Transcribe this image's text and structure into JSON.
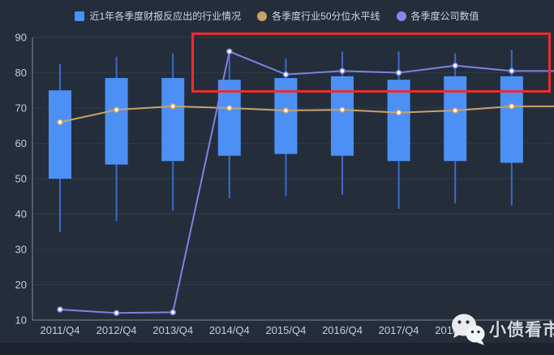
{
  "legend": {
    "items": [
      {
        "label": "近1年各季度财报反应出的行业情况",
        "marker": "square",
        "color": "#4c90f5"
      },
      {
        "label": "各季度行业50分位水平线",
        "marker": "circle",
        "color": "#c9a26b"
      },
      {
        "label": "各季度公司数值",
        "marker": "circle",
        "color": "#8588e8"
      }
    ]
  },
  "watermark": {
    "label": "小债看市",
    "icon": "wechat-icon"
  },
  "annotation": {
    "shape": "rectangle",
    "color": "#ea2c2c"
  },
  "chart_data": {
    "type": "candlestick+line",
    "title": "",
    "categories": [
      "2011/Q4",
      "2012/Q4",
      "2013/Q4",
      "2014/Q4",
      "2015/Q4",
      "2016/Q4",
      "2017/Q4",
      "2018/Q4",
      ""
    ],
    "ylim": [
      10,
      90
    ],
    "ytick_step": 10,
    "grid": true,
    "legend_position": "top",
    "series": [
      {
        "name": "近1年各季度财报反应出的行业情况",
        "type": "candlestick",
        "color": "#4c90f5",
        "whisker_color": "#3a6cc9",
        "boxes_low_q1_q3_high": [
          [
            35,
            50,
            75,
            82.5
          ],
          [
            38,
            54,
            78.5,
            84.5
          ],
          [
            41,
            55,
            78.5,
            85.5
          ],
          [
            44.5,
            56.5,
            78,
            86
          ],
          [
            45,
            57,
            78.5,
            84
          ],
          [
            45.5,
            56.5,
            79,
            86
          ],
          [
            41.5,
            55,
            78,
            86
          ],
          [
            43,
            55,
            79,
            85.5
          ],
          [
            42.5,
            54.5,
            79,
            86.5
          ]
        ]
      },
      {
        "name": "各季度行业50分位水平线",
        "type": "line",
        "color": "#c9a26b",
        "values": [
          66,
          69.5,
          70.5,
          70,
          69.3,
          69.5,
          68.7,
          69.3,
          70.5
        ]
      },
      {
        "name": "各季度公司数值",
        "type": "line",
        "color": "#7e81e2",
        "values": [
          13,
          12,
          12.2,
          86,
          79.5,
          80.5,
          80,
          82,
          80.5
        ]
      }
    ],
    "axis_colors": {
      "grid": "#2e3949",
      "axis_line": "#7e8999",
      "tick_label": "#c6ccd6"
    }
  }
}
